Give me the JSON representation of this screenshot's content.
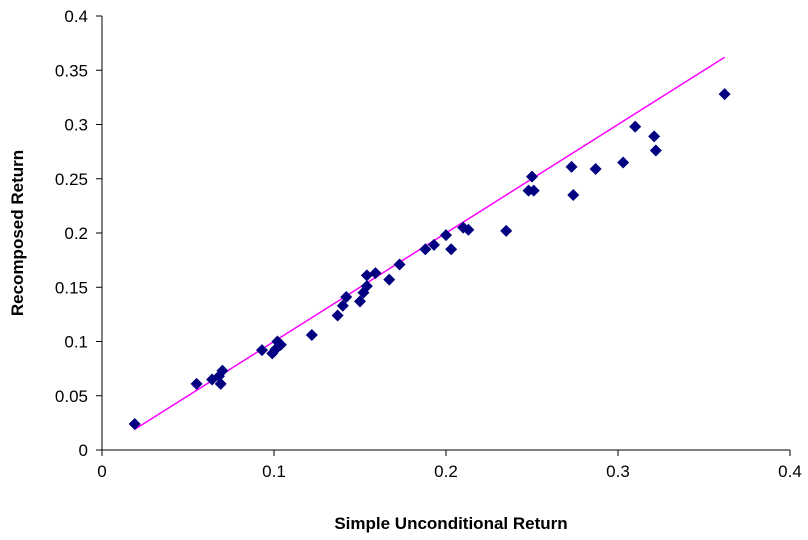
{
  "chart_data": {
    "type": "scatter",
    "title": "",
    "xlabel": "Simple Unconditional Return",
    "ylabel": "Recomposed Return",
    "xlim": [
      0,
      0.4
    ],
    "ylim": [
      0,
      0.4
    ],
    "x_ticks": [
      "0",
      "0.1",
      "0.2",
      "0.3",
      "0.4"
    ],
    "y_ticks": [
      "0",
      "0.05",
      "0.1",
      "0.15",
      "0.2",
      "0.25",
      "0.3",
      "0.35",
      "0.4"
    ],
    "grid": false,
    "legend": "none",
    "marker": "diamond",
    "marker_color": "#000080",
    "series": [
      {
        "points": [
          {
            "x": 0.019,
            "y": 0.024
          },
          {
            "x": 0.055,
            "y": 0.061
          },
          {
            "x": 0.064,
            "y": 0.065
          },
          {
            "x": 0.068,
            "y": 0.068
          },
          {
            "x": 0.069,
            "y": 0.061
          },
          {
            "x": 0.07,
            "y": 0.073
          },
          {
            "x": 0.093,
            "y": 0.092
          },
          {
            "x": 0.099,
            "y": 0.089
          },
          {
            "x": 0.101,
            "y": 0.093
          },
          {
            "x": 0.102,
            "y": 0.1
          },
          {
            "x": 0.104,
            "y": 0.097
          },
          {
            "x": 0.122,
            "y": 0.106
          },
          {
            "x": 0.137,
            "y": 0.124
          },
          {
            "x": 0.14,
            "y": 0.133
          },
          {
            "x": 0.142,
            "y": 0.141
          },
          {
            "x": 0.15,
            "y": 0.137
          },
          {
            "x": 0.152,
            "y": 0.145
          },
          {
            "x": 0.154,
            "y": 0.151
          },
          {
            "x": 0.154,
            "y": 0.161
          },
          {
            "x": 0.159,
            "y": 0.163
          },
          {
            "x": 0.167,
            "y": 0.157
          },
          {
            "x": 0.173,
            "y": 0.171
          },
          {
            "x": 0.188,
            "y": 0.185
          },
          {
            "x": 0.193,
            "y": 0.189
          },
          {
            "x": 0.2,
            "y": 0.198
          },
          {
            "x": 0.203,
            "y": 0.185
          },
          {
            "x": 0.21,
            "y": 0.205
          },
          {
            "x": 0.213,
            "y": 0.203
          },
          {
            "x": 0.235,
            "y": 0.202
          },
          {
            "x": 0.248,
            "y": 0.239
          },
          {
            "x": 0.25,
            "y": 0.252
          },
          {
            "x": 0.251,
            "y": 0.239
          },
          {
            "x": 0.273,
            "y": 0.261
          },
          {
            "x": 0.274,
            "y": 0.235
          },
          {
            "x": 0.287,
            "y": 0.259
          },
          {
            "x": 0.303,
            "y": 0.265
          },
          {
            "x": 0.31,
            "y": 0.298
          },
          {
            "x": 0.321,
            "y": 0.289
          },
          {
            "x": 0.322,
            "y": 0.276
          },
          {
            "x": 0.362,
            "y": 0.328
          }
        ]
      }
    ],
    "reference_line": {
      "color": "#ff00ff",
      "x": [
        0.019,
        0.362
      ],
      "y": [
        0.019,
        0.362
      ]
    }
  }
}
